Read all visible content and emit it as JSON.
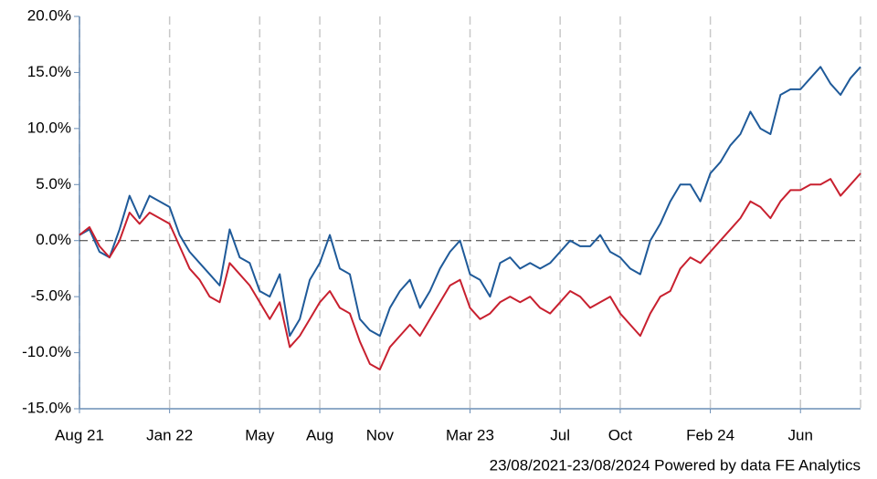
{
  "chart_data": {
    "type": "line",
    "categories": [
      "Aug 21",
      null,
      null,
      null,
      null,
      null,
      null,
      null,
      null,
      "Jan 22",
      null,
      null,
      null,
      null,
      null,
      null,
      null,
      null,
      "May",
      null,
      null,
      null,
      null,
      null,
      "Aug",
      null,
      null,
      null,
      null,
      null,
      "Nov",
      null,
      null,
      null,
      null,
      null,
      null,
      null,
      null,
      "Mar 23",
      null,
      null,
      null,
      null,
      null,
      null,
      null,
      null,
      "Jul",
      null,
      null,
      null,
      null,
      null,
      "Oct",
      null,
      null,
      null,
      null,
      null,
      null,
      null,
      null,
      "Feb 24",
      null,
      null,
      null,
      null,
      null,
      null,
      null,
      null,
      "Jun",
      null,
      null,
      null,
      null,
      null,
      null
    ],
    "series": [
      {
        "color": "#1f5a99",
        "values": [
          0.5,
          1.0,
          -1.0,
          -1.5,
          1.0,
          4.0,
          2.0,
          4.0,
          3.5,
          3.0,
          0.5,
          -1.0,
          -2.0,
          -3.0,
          -4.0,
          1.0,
          -1.5,
          -2.0,
          -4.5,
          -5.0,
          -3.0,
          -8.5,
          -7.0,
          -3.5,
          -2.0,
          0.5,
          -2.5,
          -3.0,
          -7.0,
          -8.0,
          -8.5,
          -6.0,
          -4.5,
          -3.5,
          -6.0,
          -4.5,
          -2.5,
          -1.0,
          0.0,
          -3.0,
          -3.5,
          -5.0,
          -2.0,
          -1.5,
          -2.5,
          -2.0,
          -2.5,
          -2.0,
          -1.0,
          0.0,
          -0.5,
          -0.5,
          0.5,
          -1.0,
          -1.5,
          -2.5,
          -3.0,
          0.0,
          1.5,
          3.5,
          5.0,
          5.0,
          3.5,
          6.0,
          7.0,
          8.5,
          9.5,
          11.5,
          10.0,
          9.5,
          13.0,
          13.5,
          13.5,
          14.5,
          15.5,
          14.0,
          13.0,
          14.5,
          15.5
        ]
      },
      {
        "color": "#c8202f",
        "values": [
          0.5,
          1.2,
          -0.5,
          -1.5,
          0.0,
          2.5,
          1.5,
          2.5,
          2.0,
          1.5,
          -0.5,
          -2.5,
          -3.5,
          -5.0,
          -5.5,
          -2.0,
          -3.0,
          -4.0,
          -5.5,
          -7.0,
          -5.5,
          -9.5,
          -8.5,
          -7.0,
          -5.5,
          -4.5,
          -6.0,
          -6.5,
          -9.0,
          -11.0,
          -11.5,
          -9.5,
          -8.5,
          -7.5,
          -8.5,
          -7.0,
          -5.5,
          -4.0,
          -3.5,
          -6.0,
          -7.0,
          -6.5,
          -5.5,
          -5.0,
          -5.5,
          -5.0,
          -6.0,
          -6.5,
          -5.5,
          -4.5,
          -5.0,
          -6.0,
          -5.5,
          -5.0,
          -6.5,
          -7.5,
          -8.5,
          -6.5,
          -5.0,
          -4.5,
          -2.5,
          -1.5,
          -2.0,
          -1.0,
          0.0,
          1.0,
          2.0,
          3.5,
          3.0,
          2.0,
          3.5,
          4.5,
          4.5,
          5.0,
          5.0,
          5.5,
          4.0,
          5.0,
          6.0
        ]
      }
    ],
    "ylim": [
      -15,
      20
    ],
    "yticks": [
      {
        "value": -15,
        "label": "-15.0%"
      },
      {
        "value": -10,
        "label": "-10.0%"
      },
      {
        "value": -5,
        "label": "-5.0%"
      },
      {
        "value": 0,
        "label": "0.0%"
      },
      {
        "value": 5,
        "label": "5.0%"
      },
      {
        "value": 10,
        "label": "10.0%"
      },
      {
        "value": 15,
        "label": "15.0%"
      },
      {
        "value": 20,
        "label": "20.0%"
      }
    ],
    "grid": "x",
    "source": "23/08/2021-23/08/2024 Powered by data FE Analytics"
  }
}
